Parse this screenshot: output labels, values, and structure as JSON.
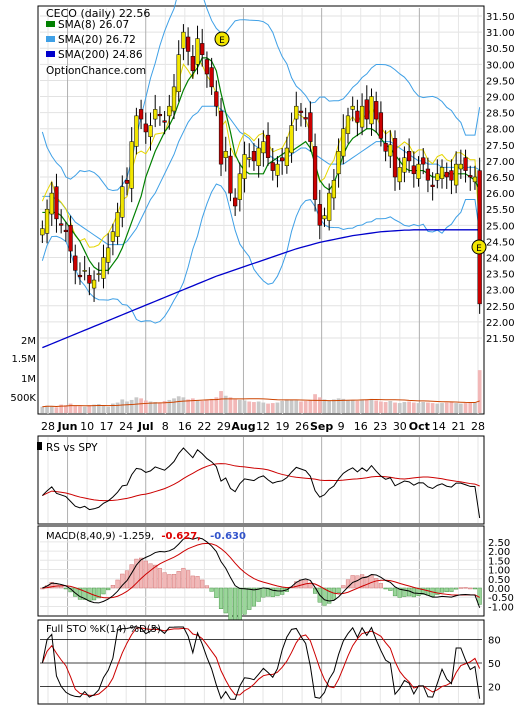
{
  "chart_data": {
    "type": "stock-chart",
    "title": "CECO (daily) 22.56",
    "source": "OptionChance.com",
    "legend": [
      {
        "label": "SMA(8) 26.07",
        "color": "#008000"
      },
      {
        "label": "SMA(20) 26.72",
        "color": "#3fa0e6"
      },
      {
        "label": "SMA(200) 24.86",
        "color": "#0000cc"
      }
    ],
    "x_ticks": [
      "28",
      "Jun",
      "10",
      "17",
      "24",
      "Jul",
      "8",
      "16",
      "22",
      "29",
      "Aug",
      "12",
      "19",
      "26",
      "Sep",
      "9",
      "16",
      "23",
      "30",
      "Oct",
      "14",
      "21",
      "28"
    ],
    "price_axis": {
      "ylim": [
        21.5,
        31.75
      ],
      "ticks": [
        "21.50",
        "22.00",
        "22.50",
        "23.00",
        "23.50",
        "24.00",
        "24.50",
        "25.00",
        "25.50",
        "26.00",
        "26.50",
        "27.00",
        "27.50",
        "28.00",
        "28.50",
        "29.00",
        "29.50",
        "30.00",
        "30.50",
        "31.00",
        "31.50"
      ]
    },
    "volume_axis": {
      "ticks": [
        "500K",
        "1M",
        "1.5M",
        "2M"
      ]
    },
    "earnings_markers": [
      "E",
      "E"
    ],
    "price_series": {
      "close": [
        24.9,
        25.5,
        26.0,
        25.2,
        25.0,
        24.8,
        24.2,
        23.6,
        23.4,
        23.6,
        23.2,
        23.3,
        23.5,
        24.0,
        24.3,
        24.8,
        25.4,
        26.2,
        26.3,
        27.6,
        28.4,
        28.3,
        27.9,
        28.1,
        28.6,
        28.4,
        28.2,
        28.7,
        29.3,
        30.3,
        31.0,
        30.4,
        29.8,
        30.8,
        30.3,
        29.7,
        29.3,
        28.7,
        26.9,
        27.3,
        26.0,
        25.6,
        26.6,
        27.2,
        27.1,
        27.0,
        27.4,
        27.6,
        27.1,
        26.7,
        26.9,
        27.0,
        27.4,
        28.1,
        28.7,
        28.5,
        28.3,
        27.6,
        25.8,
        25.0,
        25.3,
        26.0,
        26.4,
        27.3,
        28.0,
        28.4,
        28.7,
        28.2,
        28.7,
        28.3,
        29.0,
        28.3,
        27.7,
        27.3,
        27.5,
        26.5,
        26.8,
        27.1,
        27.0,
        26.6,
        26.9,
        26.9,
        26.4,
        26.2,
        26.6,
        26.8,
        26.5,
        26.4,
        26.9,
        26.9,
        26.7,
        26.5,
        26.5,
        22.56
      ],
      "sma8": [
        25.4,
        25.4,
        25.4,
        25.4,
        25.3,
        25.1,
        24.9,
        24.7,
        24.5,
        24.2,
        23.9,
        23.7,
        23.6,
        23.6,
        23.6,
        23.8,
        24.0,
        24.3,
        24.7,
        25.1,
        25.5,
        25.9,
        26.5,
        26.9,
        27.3,
        27.6,
        27.9,
        28.1,
        28.4,
        28.8,
        29.2,
        29.5,
        29.7,
        29.9,
        30.2,
        30.2,
        30.1,
        29.8,
        29.1,
        28.5,
        27.9,
        27.2,
        26.9,
        26.7,
        26.6,
        26.6,
        26.6,
        26.6,
        26.9,
        27.0,
        27.1,
        27.2,
        27.3,
        27.3,
        27.4,
        27.5,
        27.6,
        27.4,
        26.9,
        26.4,
        26.2,
        26.1,
        26.3,
        26.7,
        27.2,
        27.5,
        27.7,
        27.8,
        27.9,
        28.0,
        28.0,
        27.9,
        27.7,
        27.5,
        27.4,
        27.2,
        27.0,
        26.8,
        26.7,
        26.7,
        26.7,
        26.7,
        26.6,
        26.5,
        26.5,
        26.5,
        26.6,
        26.6,
        26.6,
        26.6,
        26.6,
        26.5,
        26.4,
        26.07
      ],
      "sma20": [
        25.9,
        25.9,
        25.9,
        25.8,
        25.7,
        25.5,
        25.3,
        25.1,
        25.0,
        24.9,
        24.8,
        24.7,
        24.6,
        24.5,
        24.4,
        24.4,
        24.4,
        24.4,
        24.5,
        24.7,
        24.9,
        25.2,
        25.5,
        25.8,
        26.0,
        26.3,
        26.6,
        26.9,
        27.2,
        27.6,
        27.9,
        28.2,
        28.4,
        28.5,
        28.7,
        28.7,
        28.7,
        28.7,
        28.6,
        28.5,
        28.3,
        28.1,
        27.9,
        27.8,
        27.7,
        27.5,
        27.4,
        27.3,
        27.2,
        27.1,
        27.0,
        27.0,
        27.1,
        27.2,
        27.3,
        27.4,
        27.4,
        27.3,
        27.2,
        27.1,
        27.0,
        26.9,
        26.9,
        26.9,
        26.9,
        27.0,
        27.1,
        27.2,
        27.3,
        27.4,
        27.5,
        27.6,
        27.6,
        27.6,
        27.6,
        27.5,
        27.4,
        27.3,
        27.2,
        27.1,
        27.0,
        27.0,
        26.9,
        26.9,
        26.9,
        26.8,
        26.8,
        26.8,
        26.8,
        26.8,
        26.8,
        26.8,
        26.8,
        26.72
      ],
      "sma200": [
        21.2,
        21.26,
        21.32,
        21.38,
        21.44,
        21.5,
        21.56,
        21.62,
        21.68,
        21.74,
        21.8,
        21.86,
        21.92,
        21.98,
        22.04,
        22.1,
        22.16,
        22.22,
        22.28,
        22.34,
        22.4,
        22.46,
        22.52,
        22.58,
        22.64,
        22.7,
        22.76,
        22.82,
        22.88,
        22.94,
        23.0,
        23.06,
        23.12,
        23.18,
        23.24,
        23.3,
        23.36,
        23.42,
        23.47,
        23.52,
        23.57,
        23.62,
        23.67,
        23.72,
        23.77,
        23.82,
        23.87,
        23.92,
        23.97,
        24.02,
        24.07,
        24.12,
        24.17,
        24.22,
        24.27,
        24.31,
        24.35,
        24.39,
        24.43,
        24.47,
        24.5,
        24.53,
        24.56,
        24.59,
        24.62,
        24.65,
        24.68,
        24.7,
        24.72,
        24.74,
        24.76,
        24.78,
        24.8,
        24.81,
        24.82,
        24.83,
        24.84,
        24.85,
        24.85,
        24.86,
        24.86,
        24.86,
        24.86,
        24.86,
        24.86,
        24.86,
        24.86,
        24.86,
        24.86,
        24.86,
        24.86,
        24.86,
        24.86,
        24.86
      ]
    },
    "volume_series": [
      120,
      140,
      130,
      110,
      160,
      150,
      180,
      140,
      130,
      120,
      150,
      160,
      170,
      140,
      120,
      180,
      200,
      260,
      220,
      250,
      300,
      280,
      240,
      220,
      210,
      200,
      230,
      250,
      280,
      320,
      300,
      260,
      280,
      240,
      230,
      260,
      270,
      300,
      420,
      330,
      300,
      260,
      250,
      240,
      220,
      210,
      220,
      200,
      180,
      190,
      200,
      230,
      260,
      250,
      240,
      220,
      230,
      250,
      360,
      300,
      260,
      240,
      260,
      280,
      270,
      250,
      240,
      230,
      260,
      250,
      270,
      240,
      220,
      210,
      230,
      200,
      190,
      210,
      220,
      200,
      190,
      210,
      200,
      190,
      180,
      190,
      200,
      210,
      190,
      180,
      190,
      200,
      210,
      820
    ],
    "rs_panel": {
      "label": "RS vs SPY"
    },
    "macd_panel": {
      "label": "MACD(8,40,9) -1.259,",
      "signal_text": "-0.627,",
      "hist_text": "-0.630",
      "signal_color": "#dd0000",
      "hist_color": "#3355cc",
      "ticks": [
        "2.50",
        "2.00",
        "1.50",
        "1.00",
        "0.50",
        "0.00",
        "-0.50",
        "-1.00"
      ]
    },
    "sto_panel": {
      "label": "Full STO %K(14) %D(5)",
      "ticks": [
        "80",
        "50",
        "20"
      ]
    },
    "grid": true,
    "legend_position": "top-left"
  }
}
